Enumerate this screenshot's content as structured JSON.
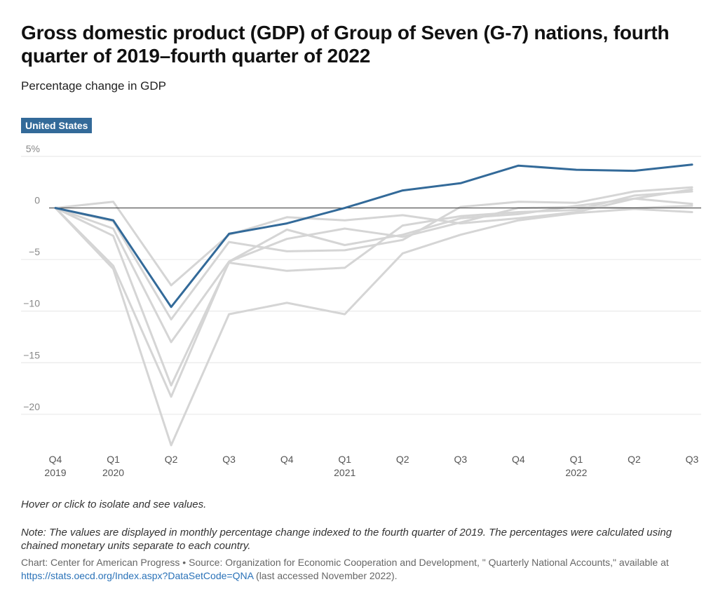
{
  "title": "Gross domestic product (GDP) of Group of Seven (G-7) nations, fourth quarter of 2019–fourth quarter of 2022",
  "subtitle": "Percentage change in GDP",
  "legend_tag": "United States",
  "hint": "Hover or click to isolate and see values.",
  "note": "Note: The values are displayed in monthly percentage change indexed to the fourth quarter of 2019. The percentages were calculated using chained monetary units separate to each country.",
  "source": {
    "text_before": "Chart: Center for American Progress • Source: Organization for Economic Cooperation and Development, \" Quarterly National Accounts,\" available at ",
    "link": "https://stats.oecd.org/Index.aspx?DataSetCode=QNA",
    "text_after": " (last accessed November 2022)."
  },
  "colors": {
    "highlight": "#336a99",
    "other_series": "#d5d5d5",
    "grid": "#e6e6e6",
    "zero_line": "#333333",
    "tick_text": "#888888",
    "x_text": "#555555"
  },
  "chart_data": {
    "type": "line",
    "title": "Gross domestic product (GDP) of Group of Seven (G-7) nations, fourth quarter of 2019–fourth quarter of 2022",
    "subtitle": "Percentage change in GDP",
    "xlabel": "",
    "ylabel": "",
    "ylim": [
      -23,
      5
    ],
    "y_ticks": [
      {
        "value": 5,
        "label": "5%"
      },
      {
        "value": 0,
        "label": "0"
      },
      {
        "value": -5,
        "label": "−5"
      },
      {
        "value": -10,
        "label": "−10"
      },
      {
        "value": -15,
        "label": "−15"
      },
      {
        "value": -20,
        "label": "−20"
      }
    ],
    "x_ticks": [
      {
        "line1": "Q4",
        "line2": "2019"
      },
      {
        "line1": "Q1",
        "line2": "2020"
      },
      {
        "line1": "Q2",
        "line2": ""
      },
      {
        "line1": "Q3",
        "line2": ""
      },
      {
        "line1": "Q4",
        "line2": ""
      },
      {
        "line1": "Q1",
        "line2": "2021"
      },
      {
        "line1": "Q2",
        "line2": ""
      },
      {
        "line1": "Q3",
        "line2": ""
      },
      {
        "line1": "Q4",
        "line2": ""
      },
      {
        "line1": "Q1",
        "line2": "2022"
      },
      {
        "line1": "Q2",
        "line2": ""
      },
      {
        "line1": "Q3",
        "line2": ""
      }
    ],
    "grid": true,
    "highlight_series": "United States",
    "series": [
      {
        "name": "United States",
        "highlight": true,
        "values": [
          0,
          -1.2,
          -9.6,
          -2.5,
          -1.5,
          0,
          1.7,
          2.4,
          4.1,
          3.7,
          3.6,
          4.2
        ]
      },
      {
        "values": [
          0,
          0.6,
          -7.5,
          -2.6,
          -0.9,
          -1.2,
          -0.7,
          -1.5,
          -1.0,
          -0.4,
          0.9,
          0.4
        ]
      },
      {
        "values": [
          0,
          -1.3,
          -10.8,
          -3.3,
          -4.2,
          -4.1,
          -3.1,
          0.1,
          0.6,
          0.5,
          1.6,
          2.0
        ]
      },
      {
        "values": [
          0,
          -2.0,
          -13.0,
          -5.2,
          -3.0,
          -2.0,
          -2.8,
          -1.4,
          0.0,
          0.1,
          0.0,
          0.2
        ]
      },
      {
        "values": [
          0,
          -2.7,
          -17.2,
          -5.3,
          -6.1,
          -5.8,
          -1.7,
          -0.8,
          -0.4,
          -0.2,
          1.2,
          1.6
        ]
      },
      {
        "values": [
          0,
          -5.6,
          -18.3,
          -5.2,
          -2.1,
          -3.6,
          -2.6,
          -1.0,
          -0.6,
          0.2,
          0.9,
          1.8
        ]
      },
      {
        "values": [
          0,
          -5.9,
          -23.0,
          -10.3,
          -9.2,
          -10.3,
          -4.4,
          -2.6,
          -1.2,
          -0.5,
          -0.1,
          -0.4
        ]
      }
    ]
  }
}
